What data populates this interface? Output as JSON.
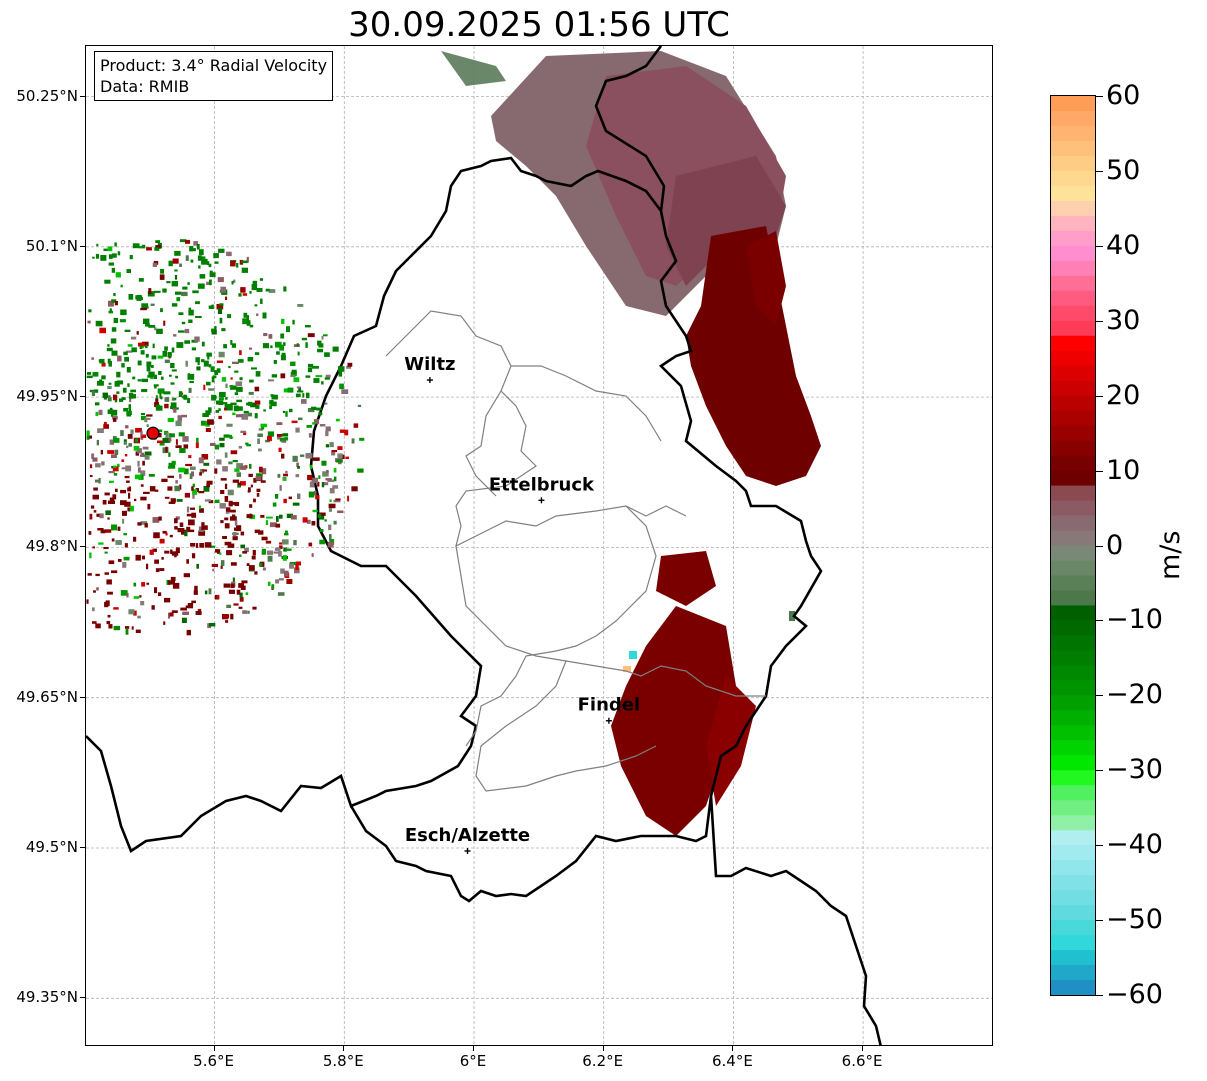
{
  "title": "30.09.2025 01:56 UTC",
  "info_box": {
    "product_line": "Product: 3.4° Radial Velocity",
    "data_line": "Data: RMIB"
  },
  "map": {
    "lon_range": [
      5.4,
      6.8
    ],
    "lat_range": [
      49.3,
      50.3
    ],
    "lon_ticks": [
      {
        "label": "5.6°E",
        "value": 5.6
      },
      {
        "label": "5.8°E",
        "value": 5.8
      },
      {
        "label": "6°E",
        "value": 6.0
      },
      {
        "label": "6.2°E",
        "value": 6.2
      },
      {
        "label": "6.4°E",
        "value": 6.4
      },
      {
        "label": "6.6°E",
        "value": 6.6
      }
    ],
    "lat_ticks": [
      {
        "label": "50.25°N",
        "value": 50.25
      },
      {
        "label": "50.1°N",
        "value": 50.1
      },
      {
        "label": "49.95°N",
        "value": 49.95
      },
      {
        "label": "49.8°N",
        "value": 49.8
      },
      {
        "label": "49.65°N",
        "value": 49.65
      },
      {
        "label": "49.5°N",
        "value": 49.5
      },
      {
        "label": "49.35°N",
        "value": 49.35
      }
    ],
    "gridlines": true,
    "radar_site": {
      "lon": 5.505,
      "lat": 49.914,
      "color": "#e00000"
    },
    "cities": [
      {
        "name": "Wiltz",
        "lon": 5.932,
        "lat": 49.967
      },
      {
        "name": "Ettelbruck",
        "lon": 6.104,
        "lat": 49.847
      },
      {
        "name": "Findel",
        "lon": 6.208,
        "lat": 49.627
      },
      {
        "name": "Esch/Alzette",
        "lon": 5.99,
        "lat": 49.497
      }
    ]
  },
  "colorbar": {
    "label": "m/s",
    "min": -60,
    "max": 60,
    "ticks": [
      {
        "label": "60",
        "value": 60
      },
      {
        "label": "50",
        "value": 50
      },
      {
        "label": "40",
        "value": 40
      },
      {
        "label": "30",
        "value": 30
      },
      {
        "label": "20",
        "value": 20
      },
      {
        "label": "10",
        "value": 10
      },
      {
        "label": "0",
        "value": 0
      },
      {
        "label": "−10",
        "value": -10
      },
      {
        "label": "−20",
        "value": -20
      },
      {
        "label": "−30",
        "value": -30
      },
      {
        "label": "−40",
        "value": -40
      },
      {
        "label": "−50",
        "value": -50
      },
      {
        "label": "−60",
        "value": -60
      }
    ],
    "bands": [
      {
        "from": 58,
        "to": 60,
        "color": "#ff9c55"
      },
      {
        "from": 56,
        "to": 58,
        "color": "#ffa868"
      },
      {
        "from": 54,
        "to": 56,
        "color": "#ffb472"
      },
      {
        "from": 52,
        "to": 54,
        "color": "#ffc07c"
      },
      {
        "from": 50,
        "to": 52,
        "color": "#ffcc86"
      },
      {
        "from": 48,
        "to": 50,
        "color": "#ffd890"
      },
      {
        "from": 46,
        "to": 48,
        "color": "#ffe29a"
      },
      {
        "from": 44,
        "to": 46,
        "color": "#ffd0b0"
      },
      {
        "from": 42,
        "to": 44,
        "color": "#ffb4c0"
      },
      {
        "from": 40,
        "to": 42,
        "color": "#ff9ec8"
      },
      {
        "from": 38,
        "to": 40,
        "color": "#ff8ed0"
      },
      {
        "from": 36,
        "to": 38,
        "color": "#ff80b4"
      },
      {
        "from": 34,
        "to": 36,
        "color": "#ff6e96"
      },
      {
        "from": 32,
        "to": 34,
        "color": "#ff5a80"
      },
      {
        "from": 30,
        "to": 32,
        "color": "#ff4a6a"
      },
      {
        "from": 28,
        "to": 30,
        "color": "#ff3c58"
      },
      {
        "from": 26,
        "to": 28,
        "color": "#ff0000"
      },
      {
        "from": 24,
        "to": 26,
        "color": "#ee0000"
      },
      {
        "from": 22,
        "to": 24,
        "color": "#dd0000"
      },
      {
        "from": 20,
        "to": 22,
        "color": "#cc0000"
      },
      {
        "from": 18,
        "to": 20,
        "color": "#bb0000"
      },
      {
        "from": 16,
        "to": 18,
        "color": "#aa0000"
      },
      {
        "from": 14,
        "to": 16,
        "color": "#990000"
      },
      {
        "from": 12,
        "to": 14,
        "color": "#880000"
      },
      {
        "from": 10,
        "to": 12,
        "color": "#770000"
      },
      {
        "from": 8,
        "to": 10,
        "color": "#6e0000"
      },
      {
        "from": 6,
        "to": 8,
        "color": "#8a4a50"
      },
      {
        "from": 4,
        "to": 6,
        "color": "#8c5a62"
      },
      {
        "from": 2,
        "to": 4,
        "color": "#8a6a72"
      },
      {
        "from": 0,
        "to": 2,
        "color": "#887878"
      },
      {
        "from": -2,
        "to": 0,
        "color": "#7a8878"
      },
      {
        "from": -4,
        "to": -2,
        "color": "#6a8868"
      },
      {
        "from": -6,
        "to": -4,
        "color": "#5a8058"
      },
      {
        "from": -8,
        "to": -6,
        "color": "#4c784a"
      },
      {
        "from": -10,
        "to": -8,
        "color": "#006000"
      },
      {
        "from": -12,
        "to": -10,
        "color": "#006a00"
      },
      {
        "from": -14,
        "to": -12,
        "color": "#007400"
      },
      {
        "from": -16,
        "to": -14,
        "color": "#007e00"
      },
      {
        "from": -18,
        "to": -16,
        "color": "#008800"
      },
      {
        "from": -20,
        "to": -18,
        "color": "#009400"
      },
      {
        "from": -22,
        "to": -20,
        "color": "#00a000"
      },
      {
        "from": -24,
        "to": -22,
        "color": "#00b000"
      },
      {
        "from": -26,
        "to": -24,
        "color": "#00c000"
      },
      {
        "from": -28,
        "to": -26,
        "color": "#00d400"
      },
      {
        "from": -30,
        "to": -28,
        "color": "#00e800"
      },
      {
        "from": -32,
        "to": -30,
        "color": "#20f820"
      },
      {
        "from": -34,
        "to": -32,
        "color": "#50f060"
      },
      {
        "from": -36,
        "to": -34,
        "color": "#70f080"
      },
      {
        "from": -38,
        "to": -36,
        "color": "#90f0a8"
      },
      {
        "from": -40,
        "to": -38,
        "color": "#b0eef0"
      },
      {
        "from": -42,
        "to": -40,
        "color": "#a0eaf0"
      },
      {
        "from": -44,
        "to": -42,
        "color": "#90e6ea"
      },
      {
        "from": -46,
        "to": -44,
        "color": "#80e2e6"
      },
      {
        "from": -48,
        "to": -46,
        "color": "#70dee2"
      },
      {
        "from": -50,
        "to": -48,
        "color": "#60dade"
      },
      {
        "from": -52,
        "to": -50,
        "color": "#48d8da"
      },
      {
        "from": -54,
        "to": -52,
        "color": "#30d8dc"
      },
      {
        "from": -56,
        "to": -54,
        "color": "#20c0d0"
      },
      {
        "from": -58,
        "to": -56,
        "color": "#20a8c8"
      },
      {
        "from": -60,
        "to": -58,
        "color": "#2090c4"
      }
    ]
  }
}
